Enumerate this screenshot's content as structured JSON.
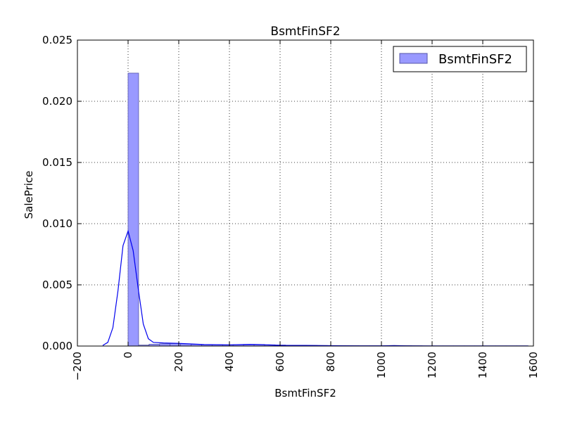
{
  "chart_data": {
    "type": "bar",
    "title": "BsmtFinSF2",
    "xlabel": "BsmtFinSF2",
    "ylabel": "SalePrice",
    "xlim": [
      -200,
      1600
    ],
    "ylim": [
      0,
      0.025
    ],
    "xticks": [
      -200,
      0,
      200,
      400,
      600,
      800,
      1000,
      1200,
      1400,
      1600
    ],
    "xtick_labels": [
      "−200",
      "0",
      "200",
      "400",
      "600",
      "800",
      "1000",
      "1200",
      "1400",
      "1600"
    ],
    "yticks": [
      0,
      0.005,
      0.01,
      0.015,
      0.02,
      0.025
    ],
    "ytick_labels": [
      "0.000",
      "0.005",
      "0.010",
      "0.015",
      "0.020",
      "0.025"
    ],
    "grid": true,
    "legend": {
      "position": "top-right",
      "entries": [
        "BsmtFinSF2"
      ]
    },
    "colors": {
      "bar_fill": "#9999ff",
      "bar_edge": "#5555aa",
      "kde_line": "#0000ee"
    },
    "histogram": {
      "name": "BsmtFinSF2",
      "bin_edges": [
        0,
        41.45,
        82.9,
        124.35,
        165.8,
        207.25,
        248.7,
        290.15,
        331.6,
        373.05,
        414.5,
        455.95,
        497.4,
        538.85,
        580.3,
        621.75,
        663.2,
        704.65,
        746.1,
        787.55,
        829.0,
        870.45,
        911.9,
        953.35,
        994.8,
        1036.25,
        1077.7,
        1119.15,
        1160.6,
        1202.05,
        1243.5,
        1284.95,
        1326.4,
        1367.85,
        1409.3,
        1450.75,
        1492.2,
        1533.65,
        1575.1
      ],
      "values": [
        0.0223,
        8e-05,
        0.00015,
        0.00018,
        0.0002,
        0.00018,
        0.00014,
        0.00012,
        0.00012,
        0.0001,
        0.00012,
        0.00013,
        0.00013,
        0.0001,
        8e-05,
        6e-05,
        6e-05,
        5e-05,
        4e-05,
        3e-05,
        3e-05,
        3e-05,
        2e-05,
        2e-05,
        2e-05,
        3e-05,
        3e-05,
        2e-05,
        1e-05,
        1e-05,
        1e-05,
        1e-05,
        1e-05,
        1e-05,
        1e-05,
        1e-05,
        1e-05,
        1e-05
      ]
    },
    "kde": {
      "x": [
        -100,
        -80,
        -60,
        -40,
        -20,
        0,
        20,
        40,
        60,
        80,
        100,
        140,
        200,
        300,
        400,
        480,
        500,
        550,
        600,
        700,
        800,
        900,
        1000,
        1050,
        1100,
        1200,
        1400,
        1580
      ],
      "y": [
        5e-05,
        0.0003,
        0.0015,
        0.0045,
        0.0082,
        0.0094,
        0.0078,
        0.0047,
        0.0018,
        0.0006,
        0.0003,
        0.00025,
        0.00022,
        0.00012,
        0.0001,
        0.00014,
        0.00013,
        0.0001,
        6e-05,
        5e-05,
        3e-05,
        2e-05,
        2e-05,
        4e-05,
        2e-05,
        1e-05,
        1e-05,
        1e-05
      ]
    }
  }
}
